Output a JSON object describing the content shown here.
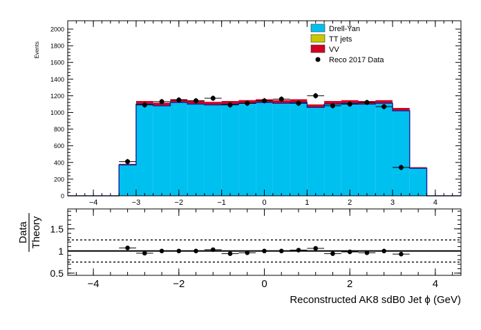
{
  "chart_data": [
    {
      "panel": "main",
      "type": "bar",
      "stacked": true,
      "ylabel": "Events",
      "ylim": [
        0,
        2100
      ],
      "xlim": [
        -4.6,
        4.6
      ],
      "yticks": [
        0,
        200,
        400,
        600,
        800,
        1000,
        1200,
        1400,
        1600,
        1800,
        2000
      ],
      "xticks": [
        -4,
        -3,
        -2,
        -1,
        0,
        1,
        2,
        3,
        4
      ],
      "bin_edges": [
        -4.6,
        -4.2,
        -3.8,
        -3.4,
        -3.0,
        -2.6,
        -2.2,
        -1.8,
        -1.4,
        -1.0,
        -0.6,
        -0.2,
        0.2,
        0.6,
        1.0,
        1.4,
        1.8,
        2.2,
        2.6,
        3.0,
        3.4,
        3.8,
        4.2,
        4.6
      ],
      "series": [
        {
          "name": "Drell-Yan",
          "color": "#00c0f0",
          "values": [
            0,
            0,
            0,
            370,
            1100,
            1080,
            1120,
            1100,
            1090,
            1100,
            1110,
            1120,
            1110,
            1120,
            1060,
            1100,
            1110,
            1100,
            1110,
            1020,
            330,
            0,
            0
          ]
        },
        {
          "name": "TT jets",
          "color": "#c8c800",
          "values": [
            0,
            0,
            0,
            1,
            2,
            2,
            2,
            2,
            2,
            2,
            2,
            2,
            2,
            2,
            2,
            2,
            2,
            2,
            2,
            2,
            1,
            0,
            0
          ]
        },
        {
          "name": "VV",
          "color": "#d40020",
          "values": [
            0,
            0,
            0,
            12,
            35,
            35,
            36,
            35,
            35,
            35,
            36,
            36,
            36,
            36,
            34,
            35,
            35,
            35,
            35,
            32,
            12,
            0,
            0
          ]
        }
      ],
      "data_series": {
        "name": "Reco 2017 Data",
        "color": "#000000",
        "x": [
          -3.2,
          -2.8,
          -2.4,
          -2.0,
          -1.6,
          -1.2,
          -0.8,
          -0.4,
          0.0,
          0.4,
          0.8,
          1.2,
          1.6,
          2.0,
          2.4,
          2.8,
          3.2
        ],
        "y": [
          410,
          1090,
          1130,
          1150,
          1140,
          1170,
          1090,
          1110,
          1140,
          1160,
          1110,
          1200,
          1080,
          1100,
          1120,
          1070,
          340
        ]
      },
      "legend": {
        "placement": "top-right",
        "entries": [
          "Drell-Yan",
          "TT jets",
          "VV",
          "Reco 2017 Data"
        ]
      }
    },
    {
      "panel": "ratio",
      "type": "scatter",
      "ylabel_numerator": "Data",
      "ylabel_denominator": "Theory",
      "xlabel": "Reconstructed AK8 sdB0 Jet ϕ (GeV)",
      "ylim": [
        0.45,
        1.95
      ],
      "xlim": [
        -4.6,
        4.6
      ],
      "yticks": [
        "0.5",
        "1",
        "1.5"
      ],
      "ytick_values": [
        0.5,
        1.0,
        1.5
      ],
      "xticks": [
        "−4",
        "−2",
        "0",
        "2",
        "4"
      ],
      "xtick_values": [
        -4,
        -2,
        0,
        2,
        4
      ],
      "reference_lines": [
        0.75,
        1.0,
        1.25
      ],
      "x": [
        -3.2,
        -2.8,
        -2.4,
        -2.0,
        -1.6,
        -1.2,
        -0.8,
        -0.4,
        0.0,
        0.4,
        0.8,
        1.2,
        1.6,
        2.0,
        2.4,
        2.8,
        3.2
      ],
      "y": [
        1.07,
        0.95,
        1.0,
        1.0,
        1.0,
        1.03,
        0.94,
        0.96,
        1.0,
        1.0,
        1.02,
        1.06,
        0.94,
        0.98,
        0.96,
        1.0,
        0.93
      ]
    }
  ]
}
